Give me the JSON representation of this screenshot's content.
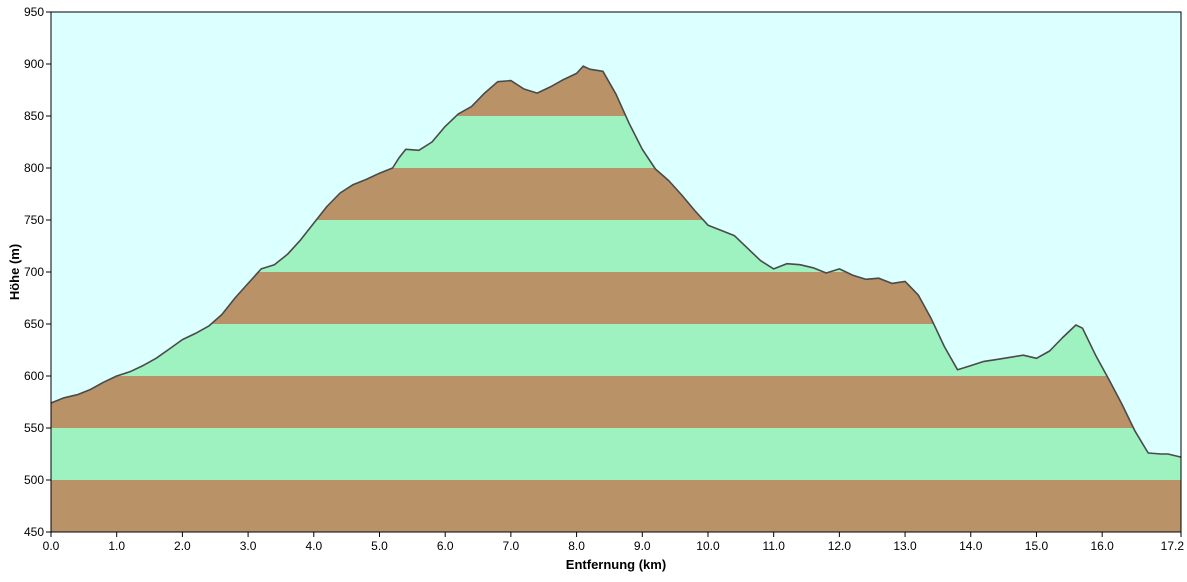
{
  "chart_data": {
    "type": "area",
    "title": "",
    "xlabel": "Entfernung   (km)",
    "ylabel": "Höhe  (m)",
    "xlim": [
      0.0,
      17.2
    ],
    "ylim": [
      450,
      950
    ],
    "x_ticks": [
      "0.0",
      "1.0",
      "2.0",
      "3.0",
      "4.0",
      "5.0",
      "6.0",
      "7.0",
      "8.0",
      "9.0",
      "10.0",
      "11.0",
      "12.0",
      "13.0",
      "14.0",
      "15.0",
      "16.0",
      "17.2"
    ],
    "y_ticks": [
      "450",
      "500",
      "550",
      "600",
      "650",
      "700",
      "750",
      "800",
      "850",
      "900",
      "950"
    ],
    "band_step": 50,
    "colors": {
      "sky": "#dcffff",
      "band_brown": "#b99367",
      "band_green": "#9ef2bf",
      "profile_line": "#4a4a4a",
      "axis": "#000000"
    },
    "grid": false,
    "legend": "none",
    "series": [
      {
        "x": [
          0.0,
          0.2,
          0.4,
          0.6,
          0.8,
          1.0,
          1.2,
          1.4,
          1.6,
          1.8,
          2.0,
          2.2,
          2.4,
          2.6,
          2.8,
          3.0,
          3.2,
          3.4,
          3.6,
          3.8,
          4.0,
          4.2,
          4.4,
          4.6,
          4.8,
          5.0,
          5.2,
          5.3,
          5.4,
          5.6,
          5.8,
          6.0,
          6.2,
          6.4,
          6.6,
          6.8,
          7.0,
          7.2,
          7.4,
          7.6,
          7.8,
          8.0,
          8.1,
          8.2,
          8.4,
          8.6,
          8.8,
          9.0,
          9.2,
          9.4,
          9.6,
          9.8,
          10.0,
          10.2,
          10.4,
          10.6,
          10.8,
          11.0,
          11.2,
          11.4,
          11.6,
          11.8,
          12.0,
          12.2,
          12.4,
          12.6,
          12.8,
          13.0,
          13.2,
          13.4,
          13.6,
          13.8,
          14.0,
          14.2,
          14.4,
          14.6,
          14.8,
          15.0,
          15.2,
          15.4,
          15.6,
          15.7,
          15.9,
          16.1,
          16.3,
          16.5,
          16.7,
          16.9,
          17.0,
          17.2
        ],
        "y": [
          574,
          579,
          582,
          587,
          594,
          600,
          604,
          610,
          617,
          626,
          635,
          641,
          648,
          659,
          675,
          689,
          703,
          707,
          717,
          731,
          747,
          763,
          776,
          784,
          789,
          795,
          800,
          810,
          818,
          817,
          825,
          840,
          852,
          859,
          872,
          883,
          884,
          876,
          872,
          878,
          885,
          891,
          898,
          895,
          893,
          871,
          843,
          818,
          799,
          788,
          774,
          759,
          745,
          740,
          735,
          723,
          711,
          703,
          708,
          707,
          704,
          699,
          703,
          697,
          693,
          694,
          689,
          691,
          678,
          655,
          628,
          606,
          610,
          614,
          616,
          618,
          620,
          617,
          624,
          637,
          649,
          646,
          620,
          597,
          573,
          547,
          526,
          525,
          525,
          522
        ]
      }
    ]
  }
}
